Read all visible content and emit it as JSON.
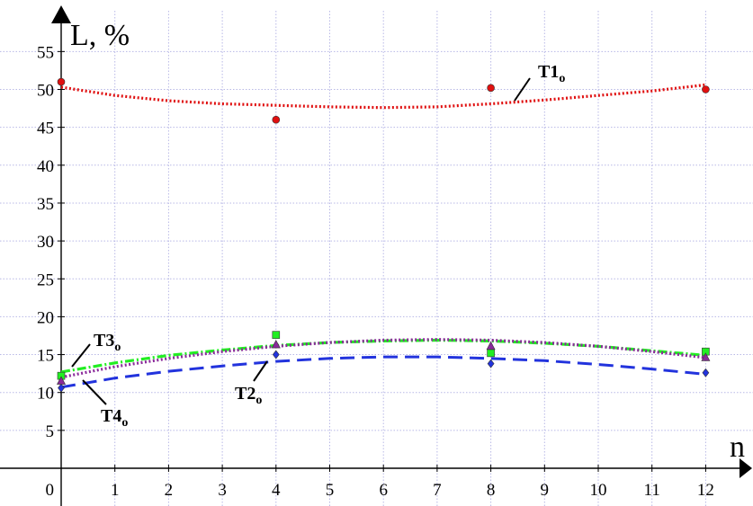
{
  "chart_data": {
    "type": "scatter",
    "title": "",
    "xlabel": "n",
    "ylabel": "L, %",
    "xlim": [
      0,
      12.4
    ],
    "ylim": [
      -2,
      57.5
    ],
    "x_ticks": [
      "1",
      "2",
      "3",
      "4",
      "5",
      "6",
      "7",
      "8",
      "9",
      "10",
      "11",
      "12"
    ],
    "y_ticks": [
      "5",
      "10",
      "15",
      "20",
      "25",
      "30",
      "35",
      "40",
      "45",
      "50",
      "55"
    ],
    "origin_label": "0",
    "grid": true,
    "series": [
      {
        "name": "T1o",
        "label_main": "T1",
        "label_sub": "o",
        "color": "#e01010",
        "marker": "circle",
        "line_style": "dotted",
        "x": [
          0,
          4,
          8,
          12
        ],
        "y": [
          51.0,
          46.0,
          50.2,
          50.0
        ],
        "trend_x": [
          0,
          1,
          2,
          3,
          4,
          5,
          6,
          7,
          8,
          9,
          10,
          11,
          12
        ],
        "trend_y": [
          50.3,
          49.2,
          48.5,
          48.1,
          47.9,
          47.7,
          47.6,
          47.7,
          48.1,
          48.6,
          49.2,
          49.8,
          50.6
        ]
      },
      {
        "name": "T2o",
        "label_main": "T2",
        "label_sub": "o",
        "color": "#2233dd",
        "marker": "diamond",
        "line_style": "dashed",
        "x": [
          0,
          4,
          8,
          12
        ],
        "y": [
          10.6,
          15.0,
          13.8,
          12.6
        ],
        "trend_x": [
          0,
          1,
          2,
          3,
          4,
          5,
          6,
          7,
          8,
          9,
          10,
          11,
          12
        ],
        "trend_y": [
          10.7,
          11.9,
          12.8,
          13.5,
          14.1,
          14.5,
          14.7,
          14.7,
          14.5,
          14.2,
          13.7,
          13.1,
          12.4
        ]
      },
      {
        "name": "T3o",
        "label_main": "T3",
        "label_sub": "o",
        "color": "#22ee22",
        "marker": "square",
        "line_style": "dash-dot",
        "x": [
          0,
          4,
          8,
          12
        ],
        "y": [
          12.2,
          17.6,
          15.2,
          15.4
        ],
        "trend_x": [
          0,
          1,
          2,
          3,
          4,
          5,
          6,
          7,
          8,
          9,
          10,
          11,
          12
        ],
        "trend_y": [
          12.7,
          13.9,
          14.9,
          15.6,
          16.2,
          16.6,
          16.8,
          16.9,
          16.8,
          16.5,
          16.1,
          15.5,
          14.9
        ]
      },
      {
        "name": "T4o",
        "label_main": "T4",
        "label_sub": "o",
        "color": "#8a2a9a",
        "marker": "triangle",
        "line_style": "dotted",
        "x": [
          0,
          4,
          8,
          12
        ],
        "y": [
          11.5,
          16.3,
          16.1,
          14.6
        ],
        "trend_x": [
          0,
          1,
          2,
          3,
          4,
          5,
          6,
          7,
          8,
          9,
          10,
          11,
          12
        ],
        "trend_y": [
          12.0,
          13.4,
          14.5,
          15.4,
          16.1,
          16.6,
          16.9,
          17.0,
          16.9,
          16.6,
          16.1,
          15.4,
          14.6
        ]
      }
    ]
  }
}
